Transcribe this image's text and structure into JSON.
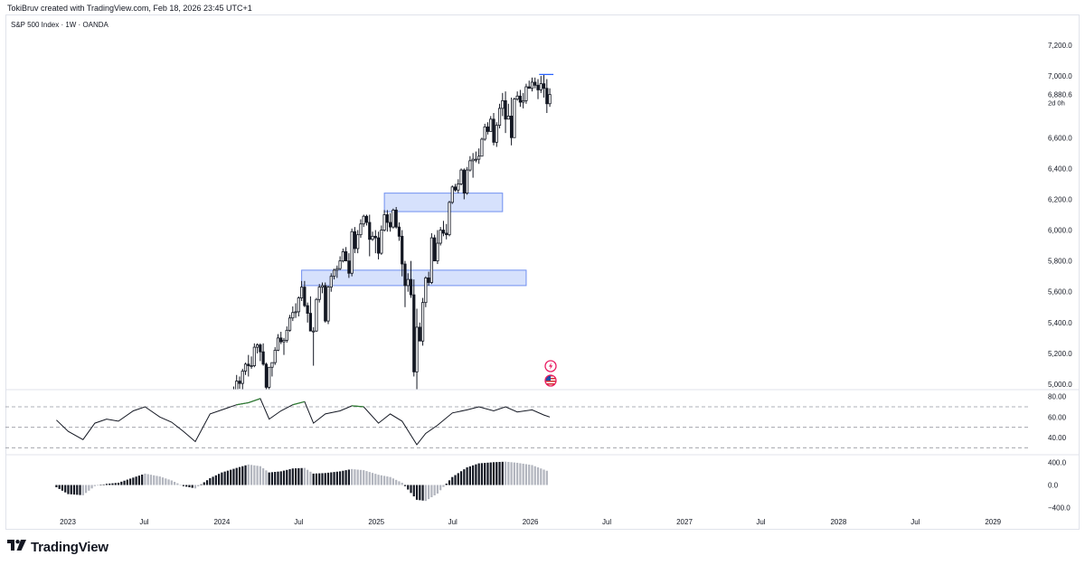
{
  "header": {
    "author_line": "TokiBruv created with TradingView.com, Feb 18, 2026 23:45 UTC+1"
  },
  "symbol": {
    "title": "S&P 500 Index · 1W · OANDA"
  },
  "brand": {
    "name": "TradingView",
    "icon": "tradingview-logo-icon"
  },
  "icons": {
    "alert": "lightning-alert-icon",
    "flag": "us-flag-icon"
  },
  "colors": {
    "up_candle": "#ffffff",
    "down_candle": "#131722",
    "zone_fill": "#cfdcfb",
    "zone_border": "#6f8ff0",
    "rsi_line": "#131722",
    "rsi_overbought": "#2e7d32",
    "histogram_light": "#b2b5be",
    "histogram_dark": "#131722",
    "grid_dashed": "#9598a1"
  },
  "chart_data": [
    {
      "type": "candlestick",
      "title": "S&P 500 Index · 1W · OANDA",
      "x_tick_labels": [
        "2023",
        "Jul",
        "2024",
        "Jul",
        "2025",
        "Jul",
        "2026",
        "Jul",
        "2027",
        "Jul",
        "2028",
        "Jul",
        "2029"
      ],
      "y_tick_labels": [
        "7,200.0",
        "7,000.0",
        "6,600.0",
        "6,400.0",
        "6,200.0",
        "6,000.0",
        "5,800.0",
        "5,600.0",
        "5,400.0",
        "5,200.0",
        "5,000.0"
      ],
      "ylim": [
        5000,
        7200
      ],
      "last_price_label": "6,880.6",
      "countdown_label": "2d 0h",
      "series": [
        {
          "x": [
            "2024-01-22",
            "2024-01-29",
            "2024-02-05",
            "2024-02-12",
            "2024-02-19",
            "2024-02-26",
            "2024-03-04",
            "2024-03-11",
            "2024-03-18",
            "2024-03-25",
            "2024-04-01",
            "2024-04-08",
            "2024-04-15",
            "2024-04-22",
            "2024-04-29",
            "2024-05-06",
            "2024-05-13",
            "2024-05-20",
            "2024-05-27",
            "2024-06-03",
            "2024-06-10",
            "2024-06-17",
            "2024-06-24",
            "2024-07-01",
            "2024-07-08",
            "2024-07-15",
            "2024-07-22",
            "2024-07-29",
            "2024-08-05",
            "2024-08-12",
            "2024-08-19",
            "2024-08-26",
            "2024-09-02",
            "2024-09-09",
            "2024-09-16",
            "2024-09-23",
            "2024-09-30",
            "2024-10-07",
            "2024-10-14",
            "2024-10-21",
            "2024-10-28",
            "2024-11-04",
            "2024-11-11",
            "2024-11-18",
            "2024-11-25",
            "2024-12-02",
            "2024-12-09",
            "2024-12-16",
            "2024-12-23",
            "2024-12-30",
            "2025-01-06",
            "2025-01-13",
            "2025-01-20",
            "2025-01-27",
            "2025-02-03",
            "2025-02-10",
            "2025-02-17",
            "2025-02-24",
            "2025-03-03",
            "2025-03-10",
            "2025-03-17",
            "2025-03-24",
            "2025-03-31",
            "2025-04-07",
            "2025-04-14",
            "2025-04-21",
            "2025-04-28",
            "2025-05-05",
            "2025-05-12",
            "2025-05-19",
            "2025-05-26",
            "2025-06-02",
            "2025-06-09",
            "2025-06-16",
            "2025-06-23",
            "2025-06-30",
            "2025-07-07",
            "2025-07-14",
            "2025-07-21",
            "2025-07-28",
            "2025-08-04",
            "2025-08-11",
            "2025-08-18",
            "2025-08-25",
            "2025-09-01",
            "2025-09-08",
            "2025-09-15",
            "2025-09-22",
            "2025-09-29",
            "2025-10-06",
            "2025-10-13",
            "2025-10-20",
            "2025-10-27",
            "2025-11-03",
            "2025-11-10",
            "2025-11-17",
            "2025-11-24",
            "2025-12-01",
            "2025-12-08",
            "2025-12-15",
            "2025-12-22",
            "2025-12-29",
            "2026-01-05",
            "2026-01-12",
            "2026-01-19",
            "2026-01-26",
            "2026-02-02",
            "2026-02-09",
            "2026-02-16"
          ],
          "open": [
            4840,
            4890,
            4958,
            5020,
            5005,
            5085,
            5130,
            5120,
            5120,
            5240,
            5255,
            5210,
            5130,
            4980,
            5110,
            5140,
            5220,
            5300,
            5275,
            5285,
            5350,
            5430,
            5465,
            5470,
            5560,
            5630,
            5510,
            5460,
            5345,
            5345,
            5550,
            5630,
            5640,
            5410,
            5630,
            5700,
            5740,
            5750,
            5800,
            5860,
            5800,
            5720,
            5990,
            5880,
            5970,
            6040,
            6090,
            6050,
            5940,
            5960,
            5950,
            5850,
            6000,
            6100,
            6050,
            6020,
            6130,
            6020,
            5960,
            5780,
            5640,
            5680,
            5580,
            5080,
            5370,
            5280,
            5530,
            5690,
            5660,
            5950,
            5800,
            5915,
            6000,
            5980,
            5970,
            6180,
            6280,
            6260,
            6300,
            6390,
            6240,
            6390,
            6450,
            6460,
            6460,
            6480,
            6590,
            6670,
            6640,
            6720,
            6570,
            6680,
            6790,
            6840,
            6720,
            6740,
            6600,
            6850,
            6870,
            6830,
            6840,
            6930,
            6920,
            6960,
            6940,
            6910,
            6950,
            6920,
            6820
          ],
          "high": [
            4935,
            4985,
            5060,
            5050,
            5100,
            5140,
            5190,
            5180,
            5265,
            5265,
            5265,
            5265,
            5140,
            5110,
            5140,
            5240,
            5325,
            5340,
            5300,
            5375,
            5450,
            5505,
            5525,
            5570,
            5670,
            5670,
            5530,
            5570,
            5370,
            5560,
            5650,
            5660,
            5660,
            5640,
            5720,
            5750,
            5770,
            5830,
            5880,
            5890,
            5850,
            6010,
            6020,
            6000,
            6070,
            6100,
            6100,
            6100,
            5990,
            6000,
            5990,
            6030,
            6130,
            6130,
            6110,
            6140,
            6150,
            6050,
            6000,
            5800,
            5720,
            5800,
            5680,
            5490,
            5400,
            5560,
            5700,
            5730,
            5980,
            5970,
            6000,
            6020,
            6060,
            6040,
            6190,
            6290,
            6300,
            6330,
            6400,
            6400,
            6410,
            6480,
            6500,
            6510,
            6530,
            6600,
            6690,
            6700,
            6740,
            6760,
            6700,
            6820,
            6890,
            6900,
            6820,
            6860,
            6860,
            6900,
            6910,
            6890,
            6950,
            6970,
            6990,
            6990,
            6980,
            7000,
            7010,
            6980,
            6920
          ],
          "low": [
            4820,
            4845,
            4935,
            4970,
            4950,
            5060,
            5050,
            5100,
            5110,
            5200,
            5150,
            5120,
            4950,
            4955,
            5050,
            5125,
            5215,
            5260,
            5190,
            5270,
            5340,
            5410,
            5430,
            5440,
            5540,
            5500,
            5400,
            5360,
            5120,
            5340,
            5530,
            5590,
            5400,
            5390,
            5600,
            5680,
            5690,
            5740,
            5790,
            5800,
            5690,
            5700,
            5850,
            5850,
            5950,
            6020,
            6030,
            5830,
            5930,
            5850,
            5810,
            5840,
            5990,
            5990,
            5990,
            6010,
            6010,
            5930,
            5700,
            5500,
            5600,
            5560,
            5050,
            4840,
            5280,
            5250,
            5500,
            5640,
            5650,
            5800,
            5780,
            5900,
            5960,
            5940,
            5960,
            6170,
            6250,
            6240,
            6290,
            6200,
            6230,
            6380,
            6340,
            6440,
            6430,
            6480,
            6580,
            6620,
            6640,
            6550,
            6540,
            6660,
            6740,
            6630,
            6720,
            6550,
            6600,
            6840,
            6800,
            6790,
            6820,
            6920,
            6900,
            6920,
            6850,
            6890,
            6860,
            6760,
            6800
          ],
          "close": [
            4890,
            4958,
            5020,
            5005,
            5085,
            5130,
            5120,
            5120,
            5240,
            5255,
            5210,
            5130,
            4980,
            5110,
            5140,
            5220,
            5300,
            5275,
            5285,
            5350,
            5430,
            5465,
            5470,
            5560,
            5630,
            5510,
            5460,
            5345,
            5345,
            5550,
            5630,
            5640,
            5410,
            5630,
            5700,
            5740,
            5750,
            5800,
            5860,
            5800,
            5720,
            5990,
            5880,
            5970,
            6040,
            6090,
            6050,
            5940,
            5960,
            5950,
            5850,
            6000,
            6100,
            6050,
            6020,
            6130,
            6020,
            5960,
            5780,
            5640,
            5680,
            5580,
            5080,
            5370,
            5280,
            5530,
            5690,
            5660,
            5950,
            5800,
            5915,
            6000,
            5980,
            5970,
            6180,
            6280,
            6260,
            6300,
            6390,
            6240,
            6390,
            6450,
            6460,
            6460,
            6480,
            6590,
            6670,
            6640,
            6720,
            6570,
            6680,
            6790,
            6840,
            6720,
            6740,
            6600,
            6850,
            6870,
            6830,
            6840,
            6930,
            6920,
            6960,
            6940,
            6910,
            6950,
            6920,
            6820,
            6880
          ]
        }
      ],
      "zones": [
        {
          "from": "2025-01-20",
          "to": "2025-10-27",
          "low": 6120,
          "high": 6240
        },
        {
          "from": "2024-07-08",
          "to": "2025-12-22",
          "low": 5640,
          "high": 5740
        }
      ],
      "level_line": {
        "from": "2026-01-26",
        "to": "2026-02-16",
        "value": 7010
      }
    },
    {
      "type": "line",
      "name": "RSI",
      "y_tick_labels": [
        "80.00",
        "60.00",
        "40.00"
      ],
      "ylim": [
        25,
        85
      ],
      "levels": [
        70,
        50,
        30
      ],
      "x": [
        "2022-12-05",
        "2023-01-02",
        "2023-02-06",
        "2023-03-06",
        "2023-04-03",
        "2023-05-01",
        "2023-06-05",
        "2023-07-03",
        "2023-08-07",
        "2023-09-04",
        "2023-10-02",
        "2023-10-30",
        "2023-12-04",
        "2024-01-01",
        "2024-02-05",
        "2024-03-04",
        "2024-04-01",
        "2024-04-22",
        "2024-05-20",
        "2024-06-17",
        "2024-07-15",
        "2024-08-05",
        "2024-09-02",
        "2024-10-07",
        "2024-11-04",
        "2024-12-02",
        "2025-01-06",
        "2025-02-03",
        "2025-03-03",
        "2025-04-07",
        "2025-04-28",
        "2025-05-26",
        "2025-06-30",
        "2025-08-04",
        "2025-09-01",
        "2025-10-06",
        "2025-11-03",
        "2025-12-01",
        "2026-01-05",
        "2026-02-02",
        "2026-02-16"
      ],
      "values": [
        57,
        46,
        38,
        54,
        58,
        56,
        66,
        70,
        60,
        55,
        46,
        36,
        63,
        67,
        72,
        74,
        78,
        58,
        66,
        72,
        75,
        54,
        63,
        66,
        71,
        70,
        54,
        63,
        56,
        33,
        44,
        52,
        64,
        67,
        70,
        66,
        70,
        65,
        67,
        62,
        60
      ]
    },
    {
      "type": "bar",
      "name": "Histogram",
      "y_tick_labels": [
        "400.0",
        "0.0",
        "−400.0"
      ],
      "ylim": [
        -500,
        500
      ],
      "x": [
        "2022-12-05",
        "2023-01-02",
        "2023-02-06",
        "2023-03-06",
        "2023-04-03",
        "2023-05-01",
        "2023-06-05",
        "2023-07-03",
        "2023-08-07",
        "2023-09-04",
        "2023-10-02",
        "2023-10-30",
        "2023-12-04",
        "2024-01-01",
        "2024-02-05",
        "2024-03-04",
        "2024-04-01",
        "2024-04-22",
        "2024-05-20",
        "2024-06-17",
        "2024-07-15",
        "2024-08-05",
        "2024-09-02",
        "2024-10-07",
        "2024-11-04",
        "2024-12-02",
        "2025-01-06",
        "2025-02-03",
        "2025-03-03",
        "2025-04-07",
        "2025-04-28",
        "2025-05-26",
        "2025-06-30",
        "2025-08-04",
        "2025-09-01",
        "2025-10-06",
        "2025-11-03",
        "2025-12-01",
        "2026-01-05",
        "2026-02-02",
        "2026-02-16"
      ],
      "values": [
        -40,
        -160,
        -180,
        -20,
        20,
        40,
        130,
        200,
        150,
        80,
        -20,
        -60,
        120,
        220,
        300,
        360,
        330,
        220,
        240,
        290,
        300,
        200,
        210,
        240,
        280,
        260,
        180,
        140,
        40,
        -260,
        -280,
        -150,
        140,
        310,
        380,
        400,
        410,
        390,
        350,
        270,
        230
      ]
    }
  ]
}
